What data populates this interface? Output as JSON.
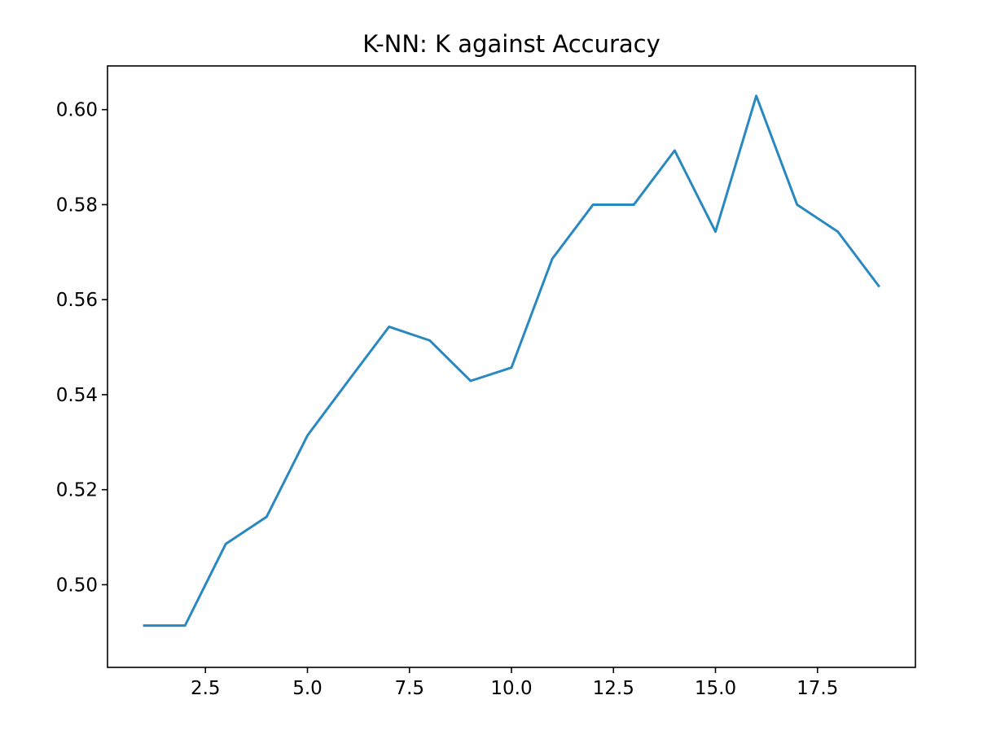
{
  "chart_data": {
    "type": "line",
    "title": "K-NN: K against Accuracy",
    "xlabel": "",
    "ylabel": "",
    "xlim": [
      0.1,
      19.9
    ],
    "ylim": [
      0.4826,
      0.6092
    ],
    "xticks": [
      2.5,
      5.0,
      7.5,
      10.0,
      12.5,
      15.0,
      17.5
    ],
    "xtick_labels": [
      "2.5",
      "5.0",
      "7.5",
      "10.0",
      "12.5",
      "15.0",
      "17.5"
    ],
    "yticks": [
      0.5,
      0.52,
      0.54,
      0.56,
      0.58,
      0.6
    ],
    "ytick_labels": [
      "0.50",
      "0.52",
      "0.54",
      "0.56",
      "0.58",
      "0.60"
    ],
    "grid": false,
    "series": [
      {
        "color": "#2a88c0",
        "x": [
          1,
          2,
          3,
          4,
          5,
          6,
          7,
          8,
          9,
          10,
          11,
          12,
          13,
          14,
          15,
          16,
          17,
          18,
          19
        ],
        "y": [
          0.4914,
          0.4914,
          0.5086,
          0.5143,
          0.5314,
          0.5429,
          0.5543,
          0.5514,
          0.5429,
          0.5457,
          0.5686,
          0.58,
          0.58,
          0.5914,
          0.5743,
          0.6029,
          0.58,
          0.5743,
          0.5629
        ]
      }
    ]
  }
}
